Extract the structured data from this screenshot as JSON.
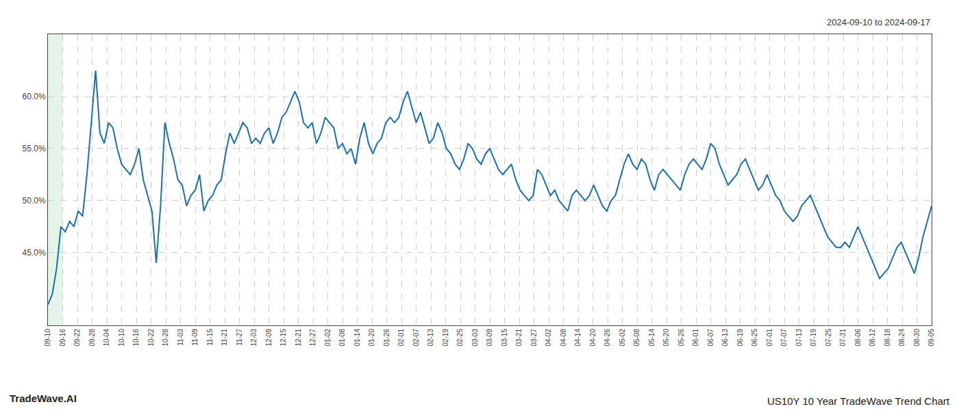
{
  "chart_data": {
    "type": "line",
    "title": "US10Y 10 Year TradeWave Trend Chart",
    "subtitle": "2024-09-10 to 2024-09-17",
    "annotations": [
      "TradeWave.AI"
    ],
    "color": "#1a6faf",
    "grid": true,
    "highlight": {
      "x": [
        0,
        1
      ],
      "color": "#d4edda"
    },
    "xlim": [
      0,
      60
    ],
    "xticks": [
      {
        "value": 0,
        "label": "09-10"
      },
      {
        "value": 1,
        "label": "09-16"
      },
      {
        "value": 2,
        "label": "09-22"
      },
      {
        "value": 3,
        "label": "09-28"
      },
      {
        "value": 4,
        "label": "10-04"
      },
      {
        "value": 5,
        "label": "10-10"
      },
      {
        "value": 6,
        "label": "10-16"
      },
      {
        "value": 7,
        "label": "10-22"
      },
      {
        "value": 8,
        "label": "10-28"
      },
      {
        "value": 9,
        "label": "11-03"
      },
      {
        "value": 10,
        "label": "11-09"
      },
      {
        "value": 11,
        "label": "11-15"
      },
      {
        "value": 12,
        "label": "11-21"
      },
      {
        "value": 13,
        "label": "11-27"
      },
      {
        "value": 14,
        "label": "12-03"
      },
      {
        "value": 15,
        "label": "12-09"
      },
      {
        "value": 16,
        "label": "12-15"
      },
      {
        "value": 17,
        "label": "12-21"
      },
      {
        "value": 18,
        "label": "12-27"
      },
      {
        "value": 19,
        "label": "01-02"
      },
      {
        "value": 20,
        "label": "01-08"
      },
      {
        "value": 21,
        "label": "01-14"
      },
      {
        "value": 22,
        "label": "01-20"
      },
      {
        "value": 23,
        "label": "01-26"
      },
      {
        "value": 24,
        "label": "02-01"
      },
      {
        "value": 25,
        "label": "02-07"
      },
      {
        "value": 26,
        "label": "02-13"
      },
      {
        "value": 27,
        "label": "02-19"
      },
      {
        "value": 28,
        "label": "02-25"
      },
      {
        "value": 29,
        "label": "03-03"
      },
      {
        "value": 30,
        "label": "03-09"
      },
      {
        "value": 31,
        "label": "03-15"
      },
      {
        "value": 32,
        "label": "03-21"
      },
      {
        "value": 33,
        "label": "03-27"
      },
      {
        "value": 34,
        "label": "04-02"
      },
      {
        "value": 35,
        "label": "04-08"
      },
      {
        "value": 36,
        "label": "04-14"
      },
      {
        "value": 37,
        "label": "04-20"
      },
      {
        "value": 38,
        "label": "04-26"
      },
      {
        "value": 39,
        "label": "05-02"
      },
      {
        "value": 40,
        "label": "05-08"
      },
      {
        "value": 41,
        "label": "05-14"
      },
      {
        "value": 42,
        "label": "05-20"
      },
      {
        "value": 43,
        "label": "05-26"
      },
      {
        "value": 44,
        "label": "06-01"
      },
      {
        "value": 45,
        "label": "06-07"
      },
      {
        "value": 46,
        "label": "06-13"
      },
      {
        "value": 47,
        "label": "06-19"
      },
      {
        "value": 48,
        "label": "06-25"
      },
      {
        "value": 49,
        "label": "07-01"
      },
      {
        "value": 50,
        "label": "07-07"
      },
      {
        "value": 51,
        "label": "07-13"
      },
      {
        "value": 52,
        "label": "07-19"
      },
      {
        "value": 53,
        "label": "07-25"
      },
      {
        "value": 54,
        "label": "07-31"
      },
      {
        "value": 55,
        "label": "08-06"
      },
      {
        "value": 56,
        "label": "08-12"
      },
      {
        "value": 57,
        "label": "08-18"
      },
      {
        "value": 58,
        "label": "08-24"
      },
      {
        "value": 59,
        "label": "08-30"
      },
      {
        "value": 60,
        "label": "09-05"
      }
    ],
    "ylim": [
      38.0,
      66.0
    ],
    "yticks": [
      {
        "value": 45.0,
        "label": "45.0%"
      },
      {
        "value": 50.0,
        "label": "50.0%"
      },
      {
        "value": 55.0,
        "label": "55.0%"
      },
      {
        "value": 60.0,
        "label": "60.0%"
      }
    ],
    "x": [
      0,
      0.294118,
      0.588235,
      0.882353,
      1.176471,
      1.470588,
      1.764706,
      2.058824,
      2.352941,
      2.647059,
      2.941176,
      3.235294,
      3.529412,
      3.823529,
      4.117647,
      4.411765,
      4.705882,
      5,
      5.294118,
      5.588235,
      5.882353,
      6.176471,
      6.470588,
      6.764706,
      7.058824,
      7.352941,
      7.647059,
      7.941176,
      8.235294,
      8.529412,
      8.823529,
      9.117647,
      9.411765,
      9.705882,
      10,
      10.294118,
      10.588235,
      10.882353,
      11.176471,
      11.470588,
      11.764706,
      12.058824,
      12.352941,
      12.647059,
      12.941176,
      13.235294,
      13.529412,
      13.823529,
      14.117647,
      14.411765,
      14.705882,
      15,
      15.294118,
      15.588235,
      15.882353,
      16.176471,
      16.470588,
      16.764706,
      17.058824,
      17.352941,
      17.647059,
      17.941176,
      18.235294,
      18.529412,
      18.823529,
      19.117647,
      19.411765,
      19.705882,
      20,
      20.294118,
      20.588235,
      20.882353,
      21.176471,
      21.470588,
      21.764706,
      22.058824,
      22.352941,
      22.647059,
      22.941176,
      23.235294,
      23.529412,
      23.823529,
      24.117647,
      24.411765,
      24.705882,
      25,
      25.294118,
      25.588235,
      25.882353,
      26.176471,
      26.470588,
      26.764706,
      27.058824,
      27.352941,
      27.647059,
      27.941176,
      28.235294,
      28.529412,
      28.823529,
      29.117647,
      29.411765,
      29.705882,
      30,
      30.294118,
      30.588235,
      30.882353,
      31.176471,
      31.470588,
      31.764706,
      32.058824,
      32.352941,
      32.647059,
      32.941176,
      33.235294,
      33.529412,
      33.823529,
      34.117647,
      34.411765,
      34.705882,
      35,
      35.294118,
      35.588235,
      35.882353,
      36.176471,
      36.470588,
      36.764706,
      37.058824,
      37.352941,
      37.647059,
      37.941176,
      38.235294,
      38.529412,
      38.823529,
      39.117647,
      39.411765,
      39.705882,
      40,
      40.294118,
      40.588235,
      40.882353,
      41.176471,
      41.470588,
      41.764706,
      42.058824,
      42.352941,
      42.647059,
      42.941176,
      43.235294,
      43.529412,
      43.823529,
      44.117647,
      44.411765,
      44.705882,
      45,
      45.294118,
      45.588235,
      45.882353,
      46.176471,
      46.470588,
      46.764706,
      47.058824,
      47.352941,
      47.647059,
      47.941176,
      48.235294,
      48.529412,
      48.823529,
      49.117647,
      49.411765,
      49.705882,
      50,
      50.294118,
      50.588235,
      50.882353,
      51.176471,
      51.470588,
      51.764706,
      52.058824,
      52.352941,
      52.647059,
      52.941176,
      53.235294,
      53.529412,
      53.823529,
      54.117647,
      54.411765,
      54.705882,
      55,
      55.294118,
      55.588235,
      55.882353,
      56.176471,
      56.470588,
      56.764706,
      57.058824,
      57.352941,
      57.647059,
      57.941176,
      58.235294,
      58.529412,
      58.823529,
      59.117647,
      59.411765,
      59.705882,
      60
    ],
    "values": [
      40.0,
      41.0,
      43.5,
      47.5,
      47.0,
      48.0,
      47.5,
      49.0,
      48.5,
      52.5,
      57.5,
      62.5,
      56.5,
      55.5,
      57.5,
      57.0,
      55.0,
      53.5,
      53.0,
      52.5,
      53.5,
      55.0,
      52.0,
      50.5,
      49.0,
      44.0,
      49.5,
      57.5,
      55.5,
      54.0,
      52.0,
      51.5,
      49.5,
      50.5,
      51.0,
      52.5,
      49.0,
      50.0,
      50.5,
      51.5,
      52.0,
      54.5,
      56.5,
      55.5,
      56.5,
      57.5,
      57.0,
      55.5,
      56.0,
      55.5,
      56.5,
      57.0,
      55.5,
      56.5,
      58.0,
      58.5,
      59.5,
      60.5,
      59.5,
      57.5,
      57.0,
      57.5,
      55.5,
      56.5,
      58.0,
      57.5,
      57.0,
      55.0,
      55.5,
      54.5,
      55.0,
      53.5,
      56.0,
      57.5,
      55.5,
      54.5,
      55.5,
      56.0,
      57.5,
      58.0,
      57.5,
      58.0,
      59.5,
      60.5,
      59.0,
      57.5,
      58.5,
      57.0,
      55.5,
      56.0,
      57.5,
      56.5,
      55.0,
      54.5,
      53.5,
      53.0,
      54.0,
      55.5,
      55.0,
      54.0,
      53.5,
      54.5,
      55.0,
      54.0,
      53.0,
      52.5,
      53.0,
      53.5,
      52.0,
      51.0,
      50.5,
      50.0,
      50.5,
      53.0,
      52.5,
      51.5,
      50.5,
      51.0,
      50.0,
      49.5,
      49.0,
      50.5,
      51.0,
      50.5,
      50.0,
      50.5,
      51.5,
      50.5,
      49.5,
      49.0,
      50.0,
      50.5,
      52.0,
      53.5,
      54.5,
      53.5,
      53.0,
      54.0,
      53.5,
      52.0,
      51.0,
      52.5,
      53.0,
      52.5,
      52.0,
      51.5,
      51.0,
      52.5,
      53.5,
      54.0,
      53.5,
      53.0,
      54.0,
      55.5,
      55.0,
      53.5,
      52.5,
      51.5,
      52.0,
      52.5,
      53.5,
      54.0,
      53.0,
      52.0,
      51.0,
      51.5,
      52.5,
      51.5,
      50.5,
      50.0,
      49.0,
      48.5,
      48.0,
      48.5,
      49.5,
      50.0,
      50.5,
      49.5,
      48.5,
      47.5,
      46.5,
      46.0,
      45.5,
      45.5,
      46.0,
      45.5,
      46.5,
      47.5,
      46.5,
      45.5,
      44.5,
      43.5,
      42.5,
      43.0,
      43.5,
      44.5,
      45.5,
      46.0,
      45.0,
      44.0,
      43.0,
      44.5,
      46.5,
      48.0,
      49.5
    ]
  }
}
